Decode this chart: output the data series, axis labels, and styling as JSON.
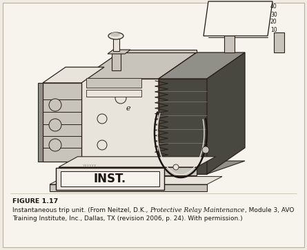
{
  "figure_label": "FIGURE 1.17",
  "caption_normal_1": "Instantaneous trip unit. (From Neitzel, D.K., ",
  "caption_italic": "Protective Relay Maintenance",
  "caption_normal_2": ", Module 3, AVO",
  "caption_line2": "Training Institute, Inc., Dallas, TX (revision 2006, p. 24). With permission.)",
  "background_color": "#f0ece4",
  "page_color": "#f7f4ee",
  "border_color": "#b8b0a0",
  "text_color": "#1c1410",
  "draw_color": "#2a2018",
  "figure_label_fontsize": 6.8,
  "caption_fontsize": 6.5,
  "scale_labels": [
    "40",
    "30",
    "20",
    "10"
  ],
  "inst_text": "INST."
}
